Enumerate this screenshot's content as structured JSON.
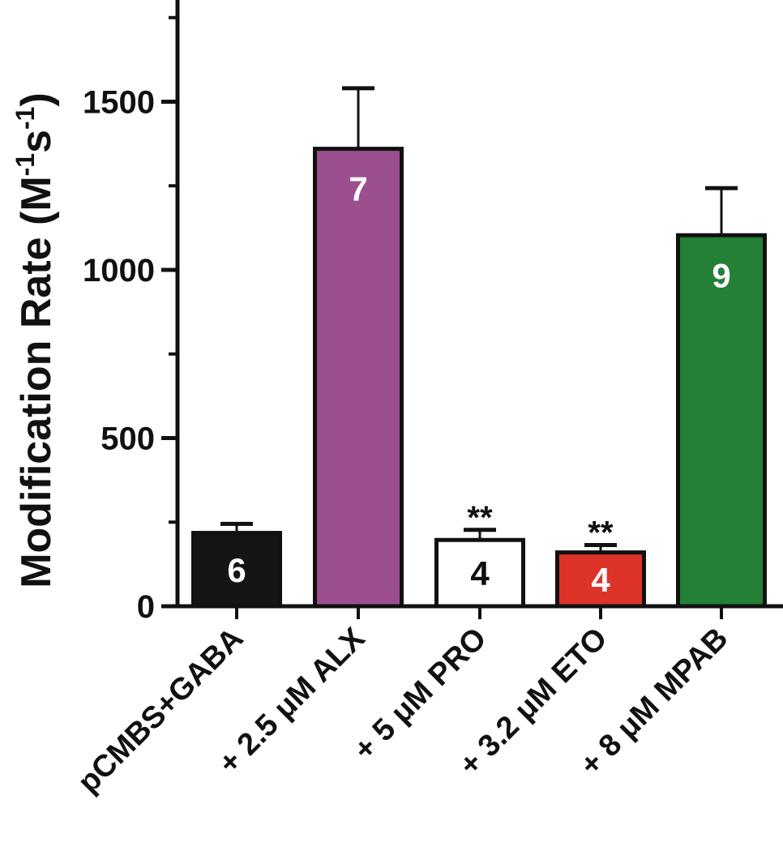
{
  "chart_data": {
    "type": "bar",
    "title": "",
    "ylabel": "Modification Rate (M",
    "ylabel_sup1": "-1",
    "ylabel_mid": "s",
    "ylabel_sup2": "-1",
    "ylabel_end": ")",
    "xlabel": "",
    "ylim": [
      0,
      1800
    ],
    "yticks": [
      0,
      500,
      1000,
      1500
    ],
    "ytick_labels": [
      "0",
      "500",
      "1000",
      "1500"
    ],
    "categories": [
      "pCMBS+GABA",
      "+ 2.5 μM ALX",
      "+ 5 μM PRO",
      "+ 3.2 μM ETO",
      "+ 8 μM MPAB"
    ],
    "values": [
      218,
      1360,
      197,
      160,
      1103
    ],
    "errors": [
      27,
      180,
      30,
      22,
      140
    ],
    "n_labels": [
      "6",
      "7",
      "4",
      "4",
      "9"
    ],
    "significance": [
      "",
      "",
      "**",
      "**",
      ""
    ],
    "colors": [
      "#151515",
      "#9b4f8e",
      "#ffffff",
      "#dd3329",
      "#238035"
    ],
    "n_label_colors": [
      "#ffffff",
      "#ffffff",
      "#111111",
      "#ffffff",
      "#ffffff"
    ],
    "grid": false,
    "legend": "none"
  }
}
